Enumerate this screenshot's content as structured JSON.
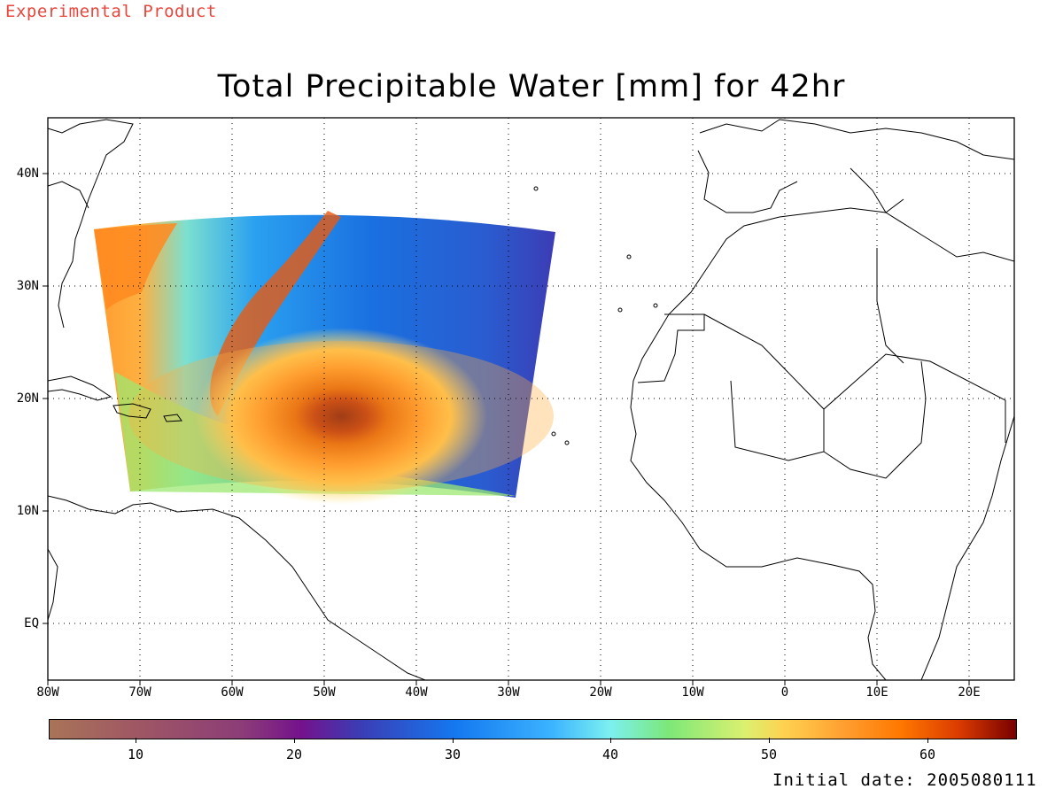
{
  "header": {
    "experimental_label": "Experimental Product"
  },
  "map": {
    "title": "Total Precipitable Water [mm] for 42hr",
    "projection": "cylindrical",
    "lon_range": [
      "80W",
      "25E"
    ],
    "lat_range": [
      "5S",
      "45N"
    ],
    "grid": "dotted",
    "lat_labels": [
      "40N",
      "30N",
      "20N",
      "10N",
      "EQ"
    ],
    "lon_labels": [
      "80W",
      "70W",
      "60W",
      "50W",
      "40W",
      "30W",
      "20W",
      "10W",
      "0",
      "10E",
      "20E"
    ],
    "features": [
      "coastlines",
      "country-borders",
      "hurricane-vortex"
    ],
    "colors": {
      "background": "#ffffff",
      "grid": "#000000",
      "coast": "#000000"
    }
  },
  "colorbar": {
    "labels": [
      "10",
      "20",
      "30",
      "40",
      "50",
      "60"
    ],
    "range": [
      4.5,
      65.5
    ],
    "colors": [
      "#a97458",
      "#a05a62",
      "#8c3c78",
      "#74128c",
      "#3c3cb4",
      "#1478f0",
      "#3cb4ff",
      "#7cf0f0",
      "#7ce878",
      "#dcf070",
      "#ffd250",
      "#ffa032",
      "#ff7800",
      "#dc3c00",
      "#780000"
    ]
  },
  "footer": {
    "initial_date": "Initial date: 2005080111"
  }
}
